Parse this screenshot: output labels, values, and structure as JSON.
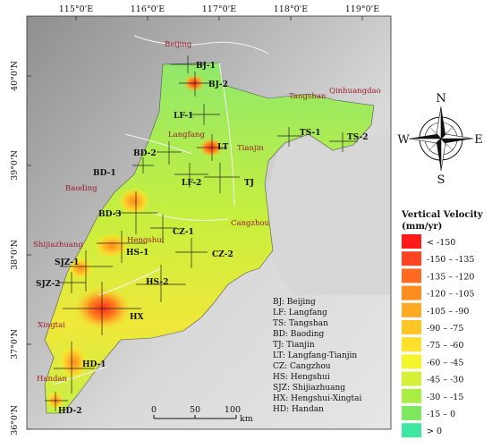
{
  "lon_ticks": [
    "115°0'E",
    "116°0'E",
    "117°0'E",
    "118°0'E",
    "119°0'E"
  ],
  "lat_ticks": [
    "40°0'N",
    "39°0'N",
    "38°0'N",
    "37°0'N",
    "36°0'N"
  ],
  "cities": [
    "Beijing",
    "Tangshan",
    "Qinhuangdao",
    "Langfang",
    "Tianjin",
    "Baoding",
    "Cangzhou",
    "Shijiazhuang",
    "Hengshui",
    "Xingtai",
    "Handan"
  ],
  "zones": [
    "BJ-1",
    "BJ-2",
    "LF-1",
    "LT",
    "TS-1",
    "TS-2",
    "BD-2",
    "BD-1",
    "LF-2",
    "TJ",
    "BD-3",
    "CZ-1",
    "HS-1",
    "SJZ-1",
    "CZ-2",
    "SJZ-2",
    "HS-2",
    "HX",
    "HD-1",
    "HD-2"
  ],
  "compass": {
    "n": "N",
    "s": "S",
    "e": "E",
    "w": "W"
  },
  "legend": {
    "title_line1": "Vertical Velocity",
    "title_line2": "(mm/yr)",
    "items": [
      {
        "label": "< -150",
        "color": "#ff1a1a"
      },
      {
        "label": "-150 – -135",
        "color": "#ff4422"
      },
      {
        "label": "-135 – -120",
        "color": "#ff6a22"
      },
      {
        "label": "-120 – -105",
        "color": "#ff8c1f"
      },
      {
        "label": "-105 – -90",
        "color": "#ffaa22"
      },
      {
        "label": "-90 – -75",
        "color": "#ffc626"
      },
      {
        "label": "-75 – -60",
        "color": "#ffe12a"
      },
      {
        "label": "-60 – -45",
        "color": "#f4f52c"
      },
      {
        "label": "-45 – -30",
        "color": "#d6f03a"
      },
      {
        "label": "-30 – -15",
        "color": "#aaee44"
      },
      {
        "label": "-15 – 0",
        "color": "#7ee860"
      },
      {
        "label": "> 0",
        "color": "#3fe8a2"
      }
    ]
  },
  "abbreviations": [
    "BJ: Beijing",
    "LF: Langfang",
    "TS: Tangshan",
    "BD: Baoding",
    "TJ: Tianjin",
    "LT: Langfang-Tianjin",
    "CZ: Cangzhou",
    "HS: Hengshui",
    "SJZ: Shijiazhuang",
    "HX: Hengshui-Xingtai",
    "HD: Handan"
  ],
  "scale_bar": {
    "labels": [
      "0",
      "50",
      "100"
    ],
    "unit": "km"
  }
}
